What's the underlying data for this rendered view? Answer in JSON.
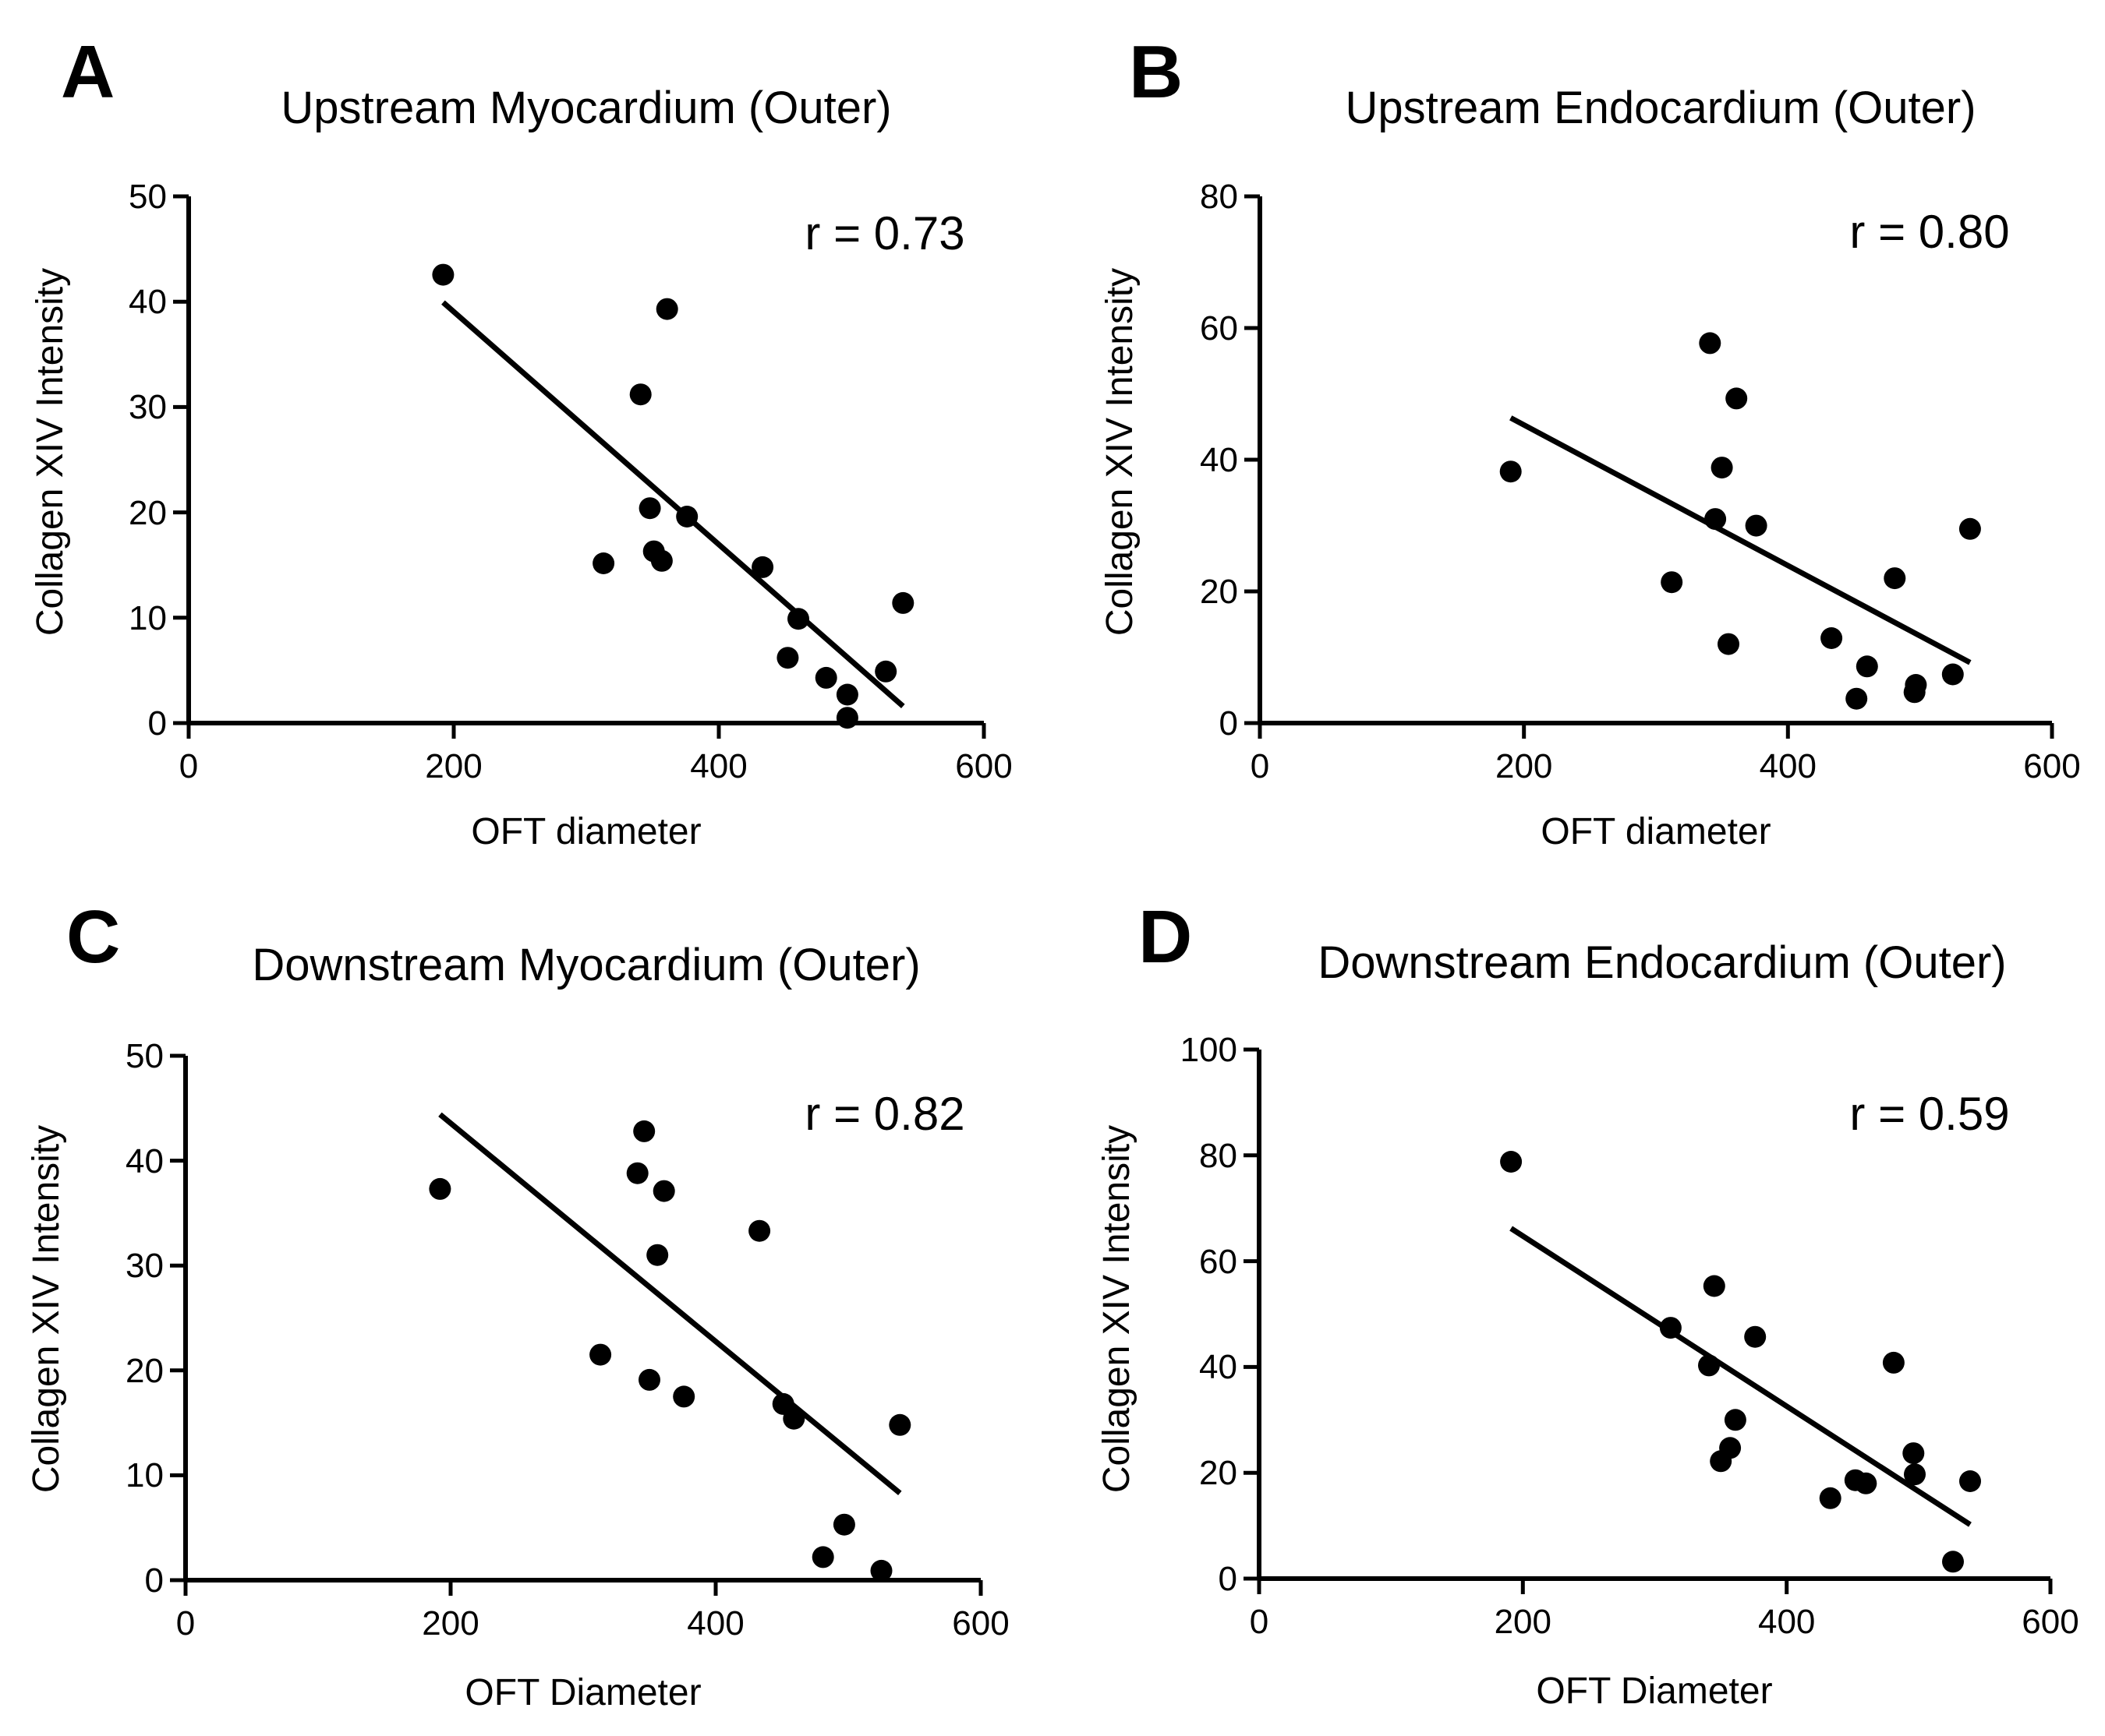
{
  "chart_data": [
    {
      "type": "scatter",
      "panel": "A",
      "title": "Upstream Myocardium (Outer)",
      "xlabel": "OFT diameter",
      "ylabel": "Collagen XIV Intensity",
      "xlim": [
        0,
        600
      ],
      "ylim": [
        0,
        50
      ],
      "xticks": [
        0,
        200,
        400,
        600
      ],
      "yticks": [
        0,
        10,
        20,
        30,
        40,
        50
      ],
      "annotation": "r = 0.73",
      "x": [
        192,
        313,
        341,
        348,
        351,
        357,
        361,
        376,
        433,
        452,
        460,
        481,
        497,
        497,
        526,
        539
      ],
      "y": [
        42.7,
        16.9,
        31.2,
        20.4,
        16.3,
        15.4,
        39.3,
        19.6,
        14.8,
        6.2,
        9.9,
        4.3,
        2.7,
        0.5,
        4.9,
        11.4
      ],
      "fit": {
        "x": [
          192,
          539
        ],
        "y": [
          39.8,
          1.5
        ]
      }
    },
    {
      "type": "scatter",
      "panel": "B",
      "title": "Upstream Endocardium (Outer)",
      "xlabel": "OFT diameter",
      "ylabel": "Collagen XIV Intensity",
      "xlim": [
        0,
        600
      ],
      "ylim": [
        0,
        80
      ],
      "xticks": [
        0,
        200,
        400,
        600
      ],
      "yticks": [
        0,
        20,
        40,
        60,
        80
      ],
      "annotation": "r = 0.80",
      "x": [
        190,
        312,
        341,
        345,
        350,
        355,
        361,
        376,
        433,
        452,
        460,
        481,
        496,
        497,
        525,
        538
      ],
      "y": [
        38.2,
        21.4,
        57.7,
        31.0,
        38.8,
        12.0,
        49.3,
        29.9,
        12.9,
        3.7,
        8.6,
        22.0,
        4.7,
        5.8,
        7.4,
        29.5
      ],
      "fit": {
        "x": [
          190,
          538
        ],
        "y": [
          46.3,
          9.2
        ]
      }
    },
    {
      "type": "scatter",
      "panel": "C",
      "title": "Downstream Myocardium (Outer)",
      "xlabel": "OFT Diameter",
      "ylabel": "Collagen XIV Intensity",
      "xlim": [
        0,
        600
      ],
      "ylim": [
        0,
        50
      ],
      "xticks": [
        0,
        200,
        400,
        600
      ],
      "yticks": [
        0,
        10,
        20,
        30,
        40,
        50
      ],
      "annotation": "r = 0.82",
      "x": [
        192,
        313,
        341,
        346,
        350,
        356,
        361,
        376,
        433,
        451,
        459,
        481,
        497,
        525,
        539
      ],
      "y": [
        37.3,
        21.5,
        38.8,
        42.8,
        19.1,
        31.0,
        37.1,
        17.5,
        33.3,
        16.8,
        15.4,
        2.2,
        5.3,
        0.9,
        14.8
      ],
      "fit": {
        "x": [
          192,
          539
        ],
        "y": [
          44.4,
          8.3
        ]
      }
    },
    {
      "type": "scatter",
      "panel": "D",
      "title": "Downstream Endocardium (Outer)",
      "xlabel": "OFT Diameter",
      "ylabel": "Collagen XIV Intensity",
      "xlim": [
        0,
        600
      ],
      "ylim": [
        0,
        100
      ],
      "xticks": [
        0,
        200,
        400,
        600
      ],
      "yticks": [
        0,
        20,
        40,
        60,
        80,
        100
      ],
      "annotation": "r = 0.59",
      "x": [
        191,
        312,
        341,
        345,
        350,
        357,
        361,
        376,
        433,
        452,
        460,
        481,
        496,
        497,
        526,
        539
      ],
      "y": [
        78.8,
        47.4,
        40.3,
        55.3,
        22.2,
        24.7,
        30.0,
        45.7,
        15.2,
        18.6,
        18.0,
        40.8,
        23.7,
        19.7,
        3.2,
        18.4
      ],
      "fit": {
        "x": [
          191,
          539
        ],
        "y": [
          66.2,
          10.2
        ]
      }
    }
  ]
}
